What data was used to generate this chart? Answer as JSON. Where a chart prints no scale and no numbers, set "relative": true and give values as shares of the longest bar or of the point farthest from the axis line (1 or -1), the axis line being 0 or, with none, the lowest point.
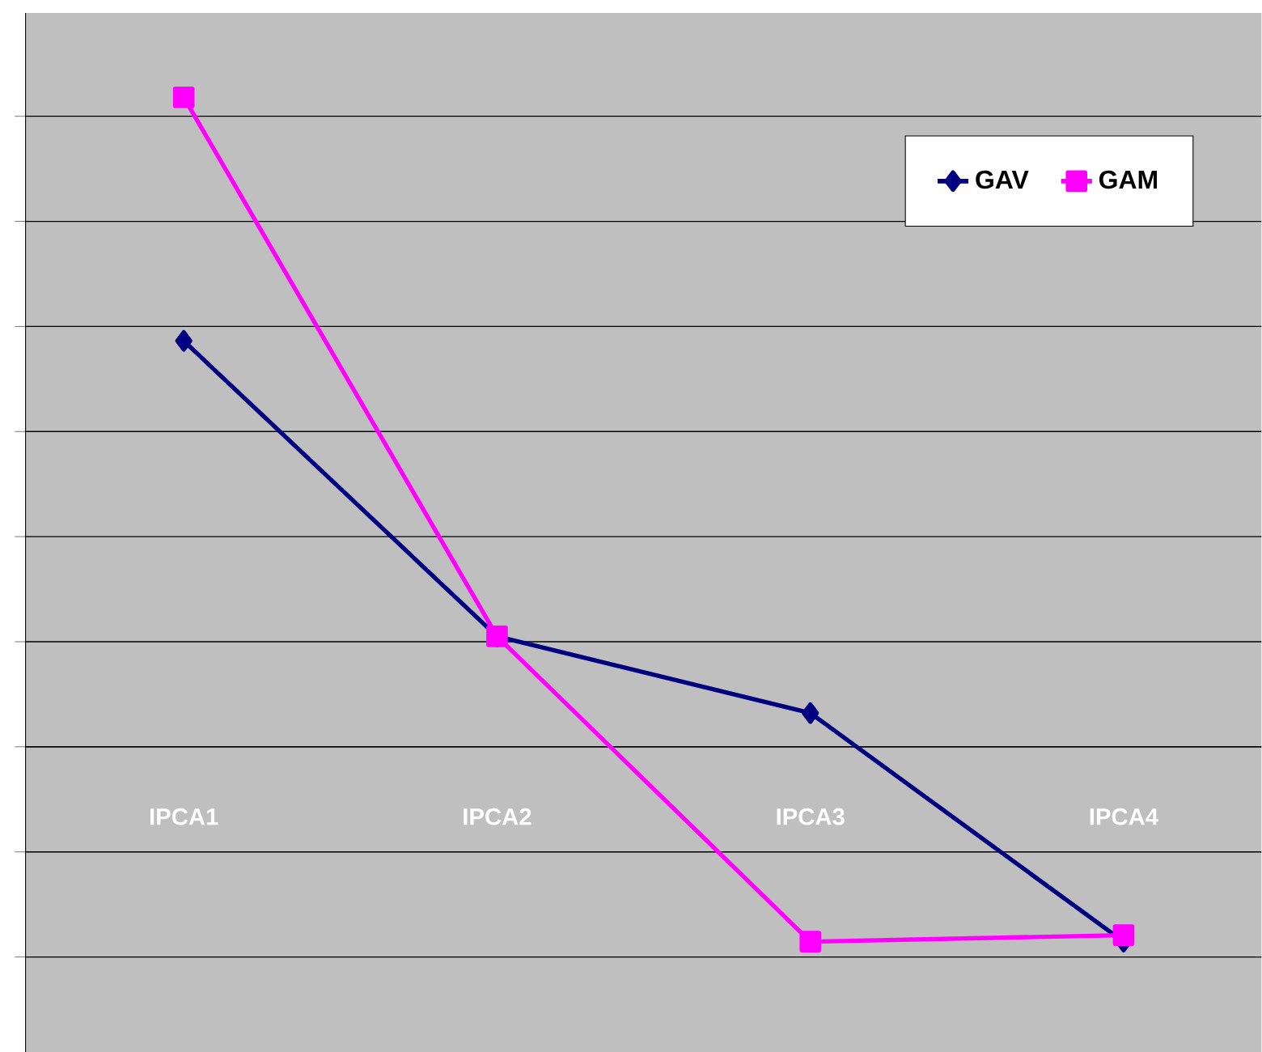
{
  "chart_data": {
    "type": "line",
    "relative": true,
    "categories": [
      "IPCA1",
      "IPCA2",
      "IPCA3",
      "IPCA4"
    ],
    "series": [
      {
        "name": "GAV",
        "color": "#000080",
        "marker": "diamond",
        "values": [
          0.625,
          0.17,
          0.052,
          -0.3
        ]
      },
      {
        "name": "GAM",
        "color": "#ff00ff",
        "marker": "square",
        "values": [
          1,
          0.17,
          -0.3,
          -0.29
        ]
      }
    ],
    "grid": "y",
    "legend": "top right"
  }
}
